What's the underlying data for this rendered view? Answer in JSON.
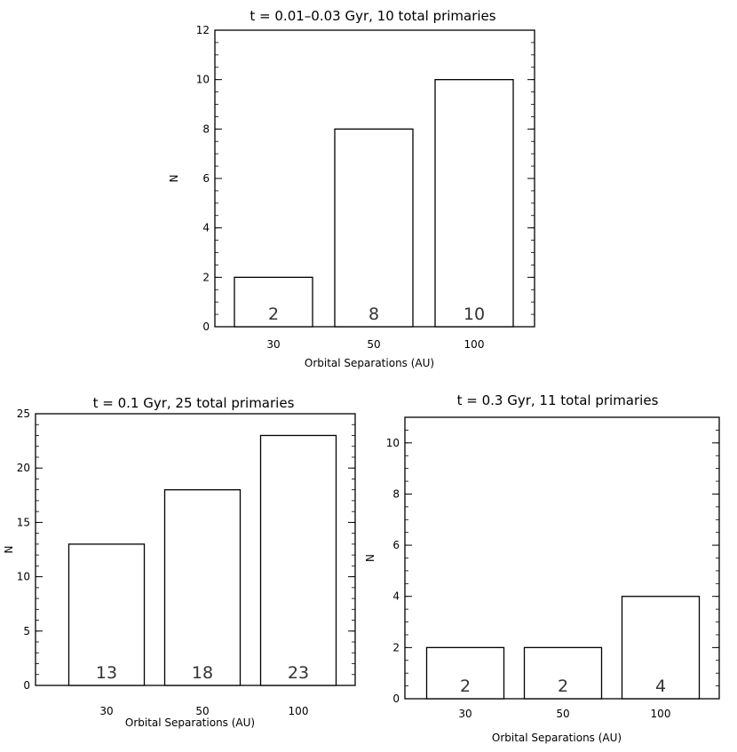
{
  "chart_data": [
    {
      "type": "bar",
      "title": "t = 0.01–0.03 Gyr, 10 total primaries",
      "xlabel": "Orbital Separations (AU)",
      "ylabel": "N",
      "categories": [
        "30",
        "50",
        "100"
      ],
      "values": [
        2,
        8,
        10
      ],
      "bar_labels": [
        "2",
        "8",
        "10"
      ],
      "ylim": [
        0,
        12
      ],
      "yticks": [
        "0",
        "2",
        "4",
        "6",
        "8",
        "10",
        "12"
      ],
      "grid": false
    },
    {
      "type": "bar",
      "title": "t = 0.1 Gyr, 25 total primaries",
      "xlabel": "Orbital Separations (AU)",
      "ylabel": "N",
      "categories": [
        "30",
        "50",
        "100"
      ],
      "values": [
        13,
        18,
        23
      ],
      "bar_labels": [
        "13",
        "18",
        "23"
      ],
      "ylim": [
        0,
        25
      ],
      "yticks": [
        "0",
        "5",
        "10",
        "15",
        "20",
        "25"
      ],
      "grid": false
    },
    {
      "type": "bar",
      "title": "t = 0.3 Gyr, 11 total primaries",
      "xlabel": "Orbital Separations (AU)",
      "ylabel": "N",
      "categories": [
        "30",
        "50",
        "100"
      ],
      "values": [
        2,
        2,
        4
      ],
      "bar_labels": [
        "2",
        "2",
        "4"
      ],
      "ylim": [
        0,
        11
      ],
      "yticks": [
        "0",
        "2",
        "4",
        "6",
        "8",
        "10"
      ],
      "grid": false
    }
  ]
}
